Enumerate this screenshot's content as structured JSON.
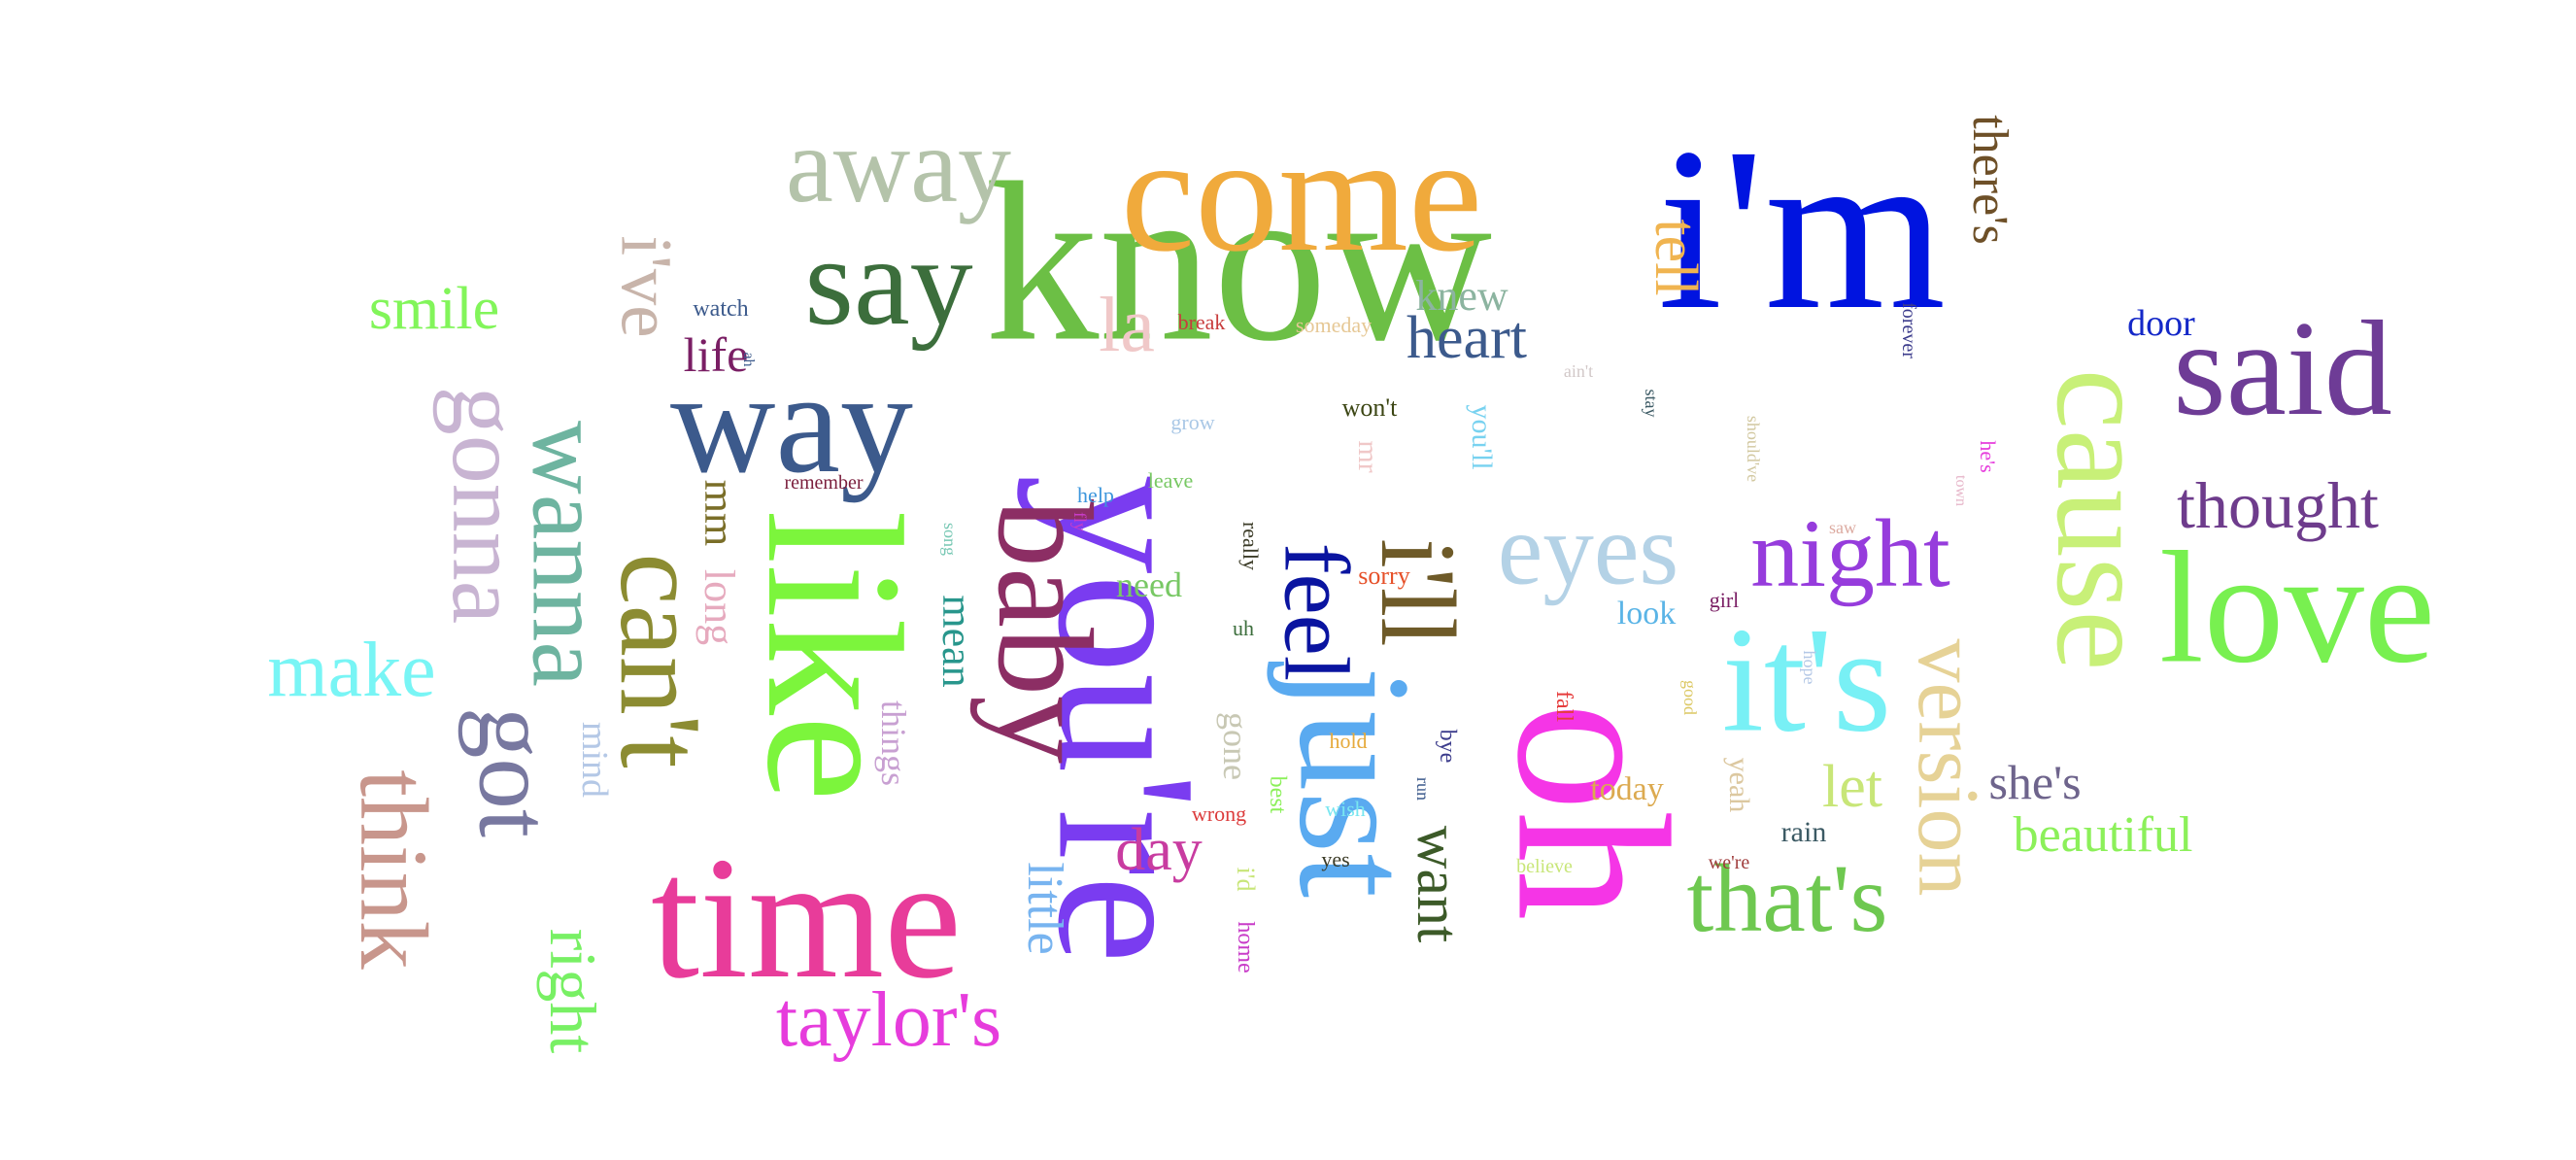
{
  "words": [
    {
      "text": "know",
      "color": "#6cbf45"
    },
    {
      "text": "you're",
      "color": "#7a3cf0"
    },
    {
      "text": "i'm",
      "color": "#0014e0"
    },
    {
      "text": "come",
      "color": "#f0aa3c"
    },
    {
      "text": "like",
      "color": "#7cf53c"
    },
    {
      "text": "oh",
      "color": "#f535e6"
    },
    {
      "text": "just",
      "color": "#5aaaf0"
    },
    {
      "text": "time",
      "color": "#e83c9a"
    },
    {
      "text": "baby",
      "color": "#8c2e64"
    },
    {
      "text": "cause",
      "color": "#c8f078"
    },
    {
      "text": "it's",
      "color": "#78f0f5"
    },
    {
      "text": "way",
      "color": "#3c5a8c"
    },
    {
      "text": "say",
      "color": "#3c6e3c"
    },
    {
      "text": "said",
      "color": "#6e3c96"
    },
    {
      "text": "love",
      "color": "#78f050"
    },
    {
      "text": "can't",
      "color": "#8c8c32"
    },
    {
      "text": "wanna",
      "color": "#6eb4a0"
    },
    {
      "text": "gonna",
      "color": "#c8b4d2"
    },
    {
      "text": "got",
      "color": "#7878a0"
    },
    {
      "text": "think",
      "color": "#c8968c"
    },
    {
      "text": "i'll",
      "color": "#6e5a28"
    },
    {
      "text": "away",
      "color": "#b4c3aa"
    },
    {
      "text": "eyes",
      "color": "#b4d2e6"
    },
    {
      "text": "version",
      "color": "#e6d296"
    },
    {
      "text": "night",
      "color": "#963cdc"
    },
    {
      "text": "that's",
      "color": "#6ec850"
    },
    {
      "text": "feel",
      "color": "#0a14a0"
    },
    {
      "text": "taylor's",
      "color": "#e63cdc"
    },
    {
      "text": "make",
      "color": "#78f5f5"
    },
    {
      "text": "right",
      "color": "#78f064"
    },
    {
      "text": "smile",
      "color": "#82f55a"
    },
    {
      "text": "i've",
      "color": "#c8b4aa"
    },
    {
      "text": "thought",
      "color": "#6e3c8c"
    },
    {
      "text": "la",
      "color": "#f0c8c8"
    },
    {
      "text": "heart",
      "color": "#3c5a8c"
    },
    {
      "text": "tell",
      "color": "#f0b450"
    },
    {
      "text": "want",
      "color": "#3c5a28"
    },
    {
      "text": "day",
      "color": "#c83ca0"
    },
    {
      "text": "let",
      "color": "#c8e678"
    },
    {
      "text": "she's",
      "color": "#6e648c"
    },
    {
      "text": "beautiful",
      "color": "#8cf05a"
    },
    {
      "text": "there's",
      "color": "#6e5028"
    },
    {
      "text": "little",
      "color": "#78b4f0"
    },
    {
      "text": "life",
      "color": "#7a1e64"
    },
    {
      "text": "mm",
      "color": "#7a6e28"
    },
    {
      "text": "long",
      "color": "#e6aabe"
    },
    {
      "text": "mean",
      "color": "#28968c"
    },
    {
      "text": "knew",
      "color": "#8cb4a0"
    },
    {
      "text": "door",
      "color": "#1428c8"
    },
    {
      "text": "need",
      "color": "#78c864"
    },
    {
      "text": "mind",
      "color": "#b4c8e6"
    },
    {
      "text": "things",
      "color": "#c8a0d2"
    },
    {
      "text": "look",
      "color": "#5ab4e6"
    },
    {
      "text": "today",
      "color": "#dcaa50"
    },
    {
      "text": "gone",
      "color": "#c8c8b4"
    },
    {
      "text": "you'll",
      "color": "#78d2f0"
    },
    {
      "text": "won't",
      "color": "#3c4614"
    },
    {
      "text": "sorry",
      "color": "#e65028"
    },
    {
      "text": "mr",
      "color": "#f0c8c8"
    },
    {
      "text": "yeah",
      "color": "#dcc8a0"
    },
    {
      "text": "rain",
      "color": "#3c5a64"
    },
    {
      "text": "watch",
      "color": "#3c5a8c"
    },
    {
      "text": "remember",
      "color": "#7a1e3c"
    },
    {
      "text": "break",
      "color": "#c83c3c"
    },
    {
      "text": "someday",
      "color": "#e6c896"
    },
    {
      "text": "grow",
      "color": "#aac8e6"
    },
    {
      "text": "leave",
      "color": "#78c864"
    },
    {
      "text": "help",
      "color": "#3c96dc"
    },
    {
      "text": "fly",
      "color": "#c83cc8"
    },
    {
      "text": "song",
      "color": "#78c8b4"
    },
    {
      "text": "really",
      "color": "#3c3c28"
    },
    {
      "text": "uh",
      "color": "#3c6e3c"
    },
    {
      "text": "hold",
      "color": "#e6aa3c"
    },
    {
      "text": "wrong",
      "color": "#dc3c3c"
    },
    {
      "text": "best",
      "color": "#8cf05a"
    },
    {
      "text": "wish",
      "color": "#78e6f0"
    },
    {
      "text": "i'd",
      "color": "#c8e678"
    },
    {
      "text": "home",
      "color": "#c83cc8"
    },
    {
      "text": "yes",
      "color": "#3c3c28"
    },
    {
      "text": "bye",
      "color": "#3c3c8c"
    },
    {
      "text": "run",
      "color": "#3c5a8c"
    },
    {
      "text": "fall",
      "color": "#e63c3c"
    },
    {
      "text": "believe",
      "color": "#c8e678"
    },
    {
      "text": "girl",
      "color": "#7a1e64"
    },
    {
      "text": "good",
      "color": "#dcc864"
    },
    {
      "text": "hope",
      "color": "#b4c8e6"
    },
    {
      "text": "we're",
      "color": "#a03c3c"
    },
    {
      "text": "ain't",
      "color": "#d2c8c8"
    },
    {
      "text": "stay",
      "color": "#3c5a64"
    },
    {
      "text": "should've",
      "color": "#d2c8a0"
    },
    {
      "text": "forever",
      "color": "#3c3c8c"
    },
    {
      "text": "he's",
      "color": "#e63cdc"
    },
    {
      "text": "town",
      "color": "#e6b4c8"
    },
    {
      "text": "saw",
      "color": "#dcaaa0"
    },
    {
      "text": "ah",
      "color": "#3c5a8c"
    }
  ]
}
